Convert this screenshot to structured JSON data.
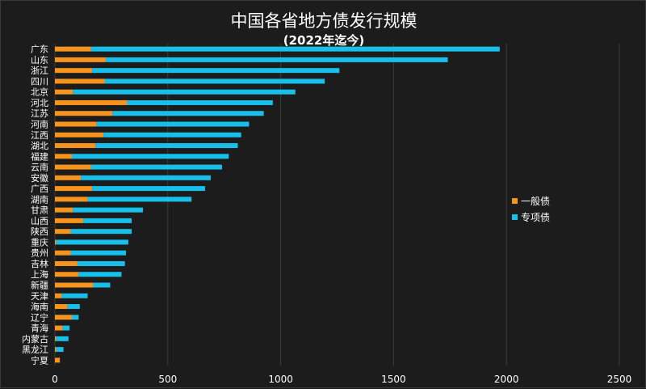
{
  "chart_data": {
    "type": "bar",
    "orientation": "horizontal",
    "stacked": true,
    "title": "中国各省地方债发行规模",
    "subtitle": "(2022年迄今)",
    "categories": [
      "广东",
      "山东",
      "浙江",
      "四川",
      "北京",
      "河北",
      "江苏",
      "河南",
      "江西",
      "湖北",
      "福建",
      "云南",
      "安徽",
      "广西",
      "湖南",
      "甘肃",
      "山西",
      "陕西",
      "重庆",
      "贵州",
      "吉林",
      "上海",
      "新疆",
      "天津",
      "海南",
      "辽宁",
      "青海",
      "内蒙古",
      "黑龙江",
      "宁夏"
    ],
    "series": [
      {
        "name": "一般债",
        "color": "#f7941d",
        "values": [
          160,
          225,
          165,
          220,
          80,
          320,
          255,
          185,
          215,
          180,
          75,
          160,
          115,
          165,
          145,
          80,
          125,
          70,
          5,
          70,
          100,
          105,
          170,
          30,
          55,
          75,
          35,
          5,
          5,
          22
        ]
      },
      {
        "name": "专项债",
        "color": "#16c0eb",
        "values": [
          1810,
          1515,
          1095,
          975,
          985,
          645,
          670,
          675,
          610,
          630,
          695,
          580,
          575,
          500,
          460,
          310,
          215,
          270,
          320,
          245,
          210,
          190,
          75,
          115,
          55,
          30,
          30,
          55,
          33,
          0
        ]
      }
    ],
    "xlim": [
      0,
      2500
    ],
    "xticks": [
      0,
      500,
      1000,
      1500,
      2000,
      2500
    ],
    "grid": true,
    "legend_position": "right"
  }
}
